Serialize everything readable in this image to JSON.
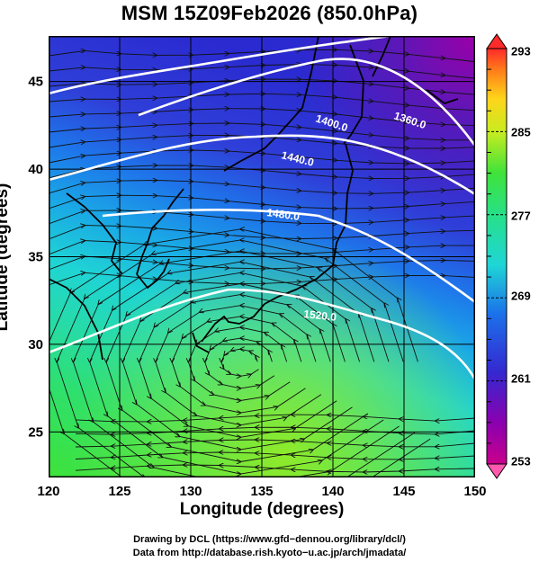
{
  "title": "MSM 15Z09Feb2026 (850.0hPa)",
  "x_axis": {
    "label": "Longitude (degrees)",
    "ticks": [
      "120",
      "125",
      "130",
      "135",
      "140",
      "145",
      "150"
    ],
    "range": [
      120,
      150
    ]
  },
  "y_axis": {
    "label": "Latitude  (degrees)",
    "ticks": [
      "25",
      "30",
      "35",
      "40",
      "45"
    ],
    "range": [
      22.4,
      47.6
    ]
  },
  "colorbar": {
    "labels": [
      "293",
      "285",
      "277",
      "269",
      "261",
      "253"
    ],
    "range": [
      253,
      293
    ],
    "colors": [
      "#8b00a8",
      "#3a2fd0",
      "#1f7fe6",
      "#1fd6d6",
      "#26e08a",
      "#46e63a",
      "#c8f020",
      "#ffd21a",
      "#ff7a1a",
      "#ff2a2a"
    ]
  },
  "contours": [
    {
      "label": "1360.0"
    },
    {
      "label": "1400.0"
    },
    {
      "label": "1440.0"
    },
    {
      "label": "1480.0"
    },
    {
      "label": "1520.0"
    }
  ],
  "credits": {
    "line1": "Drawing by DCL (https://www.gfd−dennou.org/library/dcl/)",
    "line2": "Data from http://database.rish.kyoto−u.ac.jp/arch/jmadata/"
  }
}
